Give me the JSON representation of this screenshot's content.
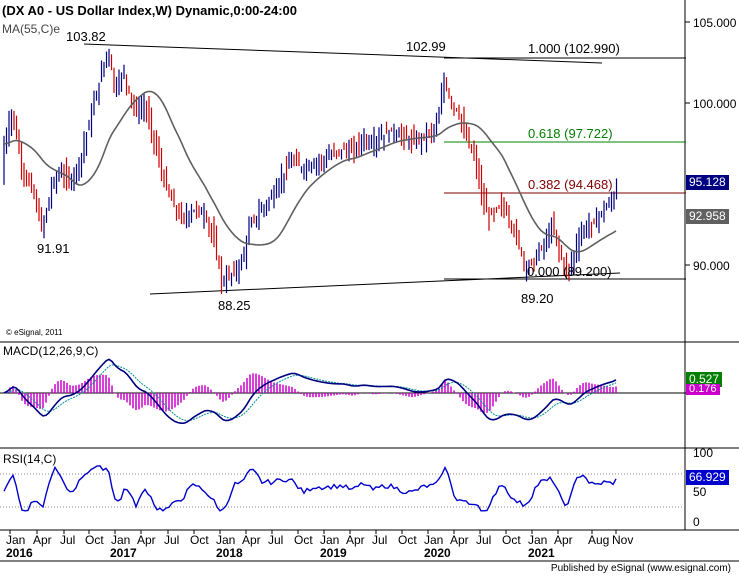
{
  "header": {
    "title": "(DX A0 - US Dollar Index,W) Dynamic,0:00-24:00",
    "ma_label": "MA(55,C)e",
    "credit": "© eSignal, 2011",
    "footer": "Published by eSignal (www.esignal.com)"
  },
  "price_axis": {
    "ticks": [
      "105.000",
      "100.000",
      "90.000"
    ],
    "current_price": "95.128",
    "ma_value": "92.958"
  },
  "annotations": {
    "high_2016": "103.82",
    "low_2016": "91.91",
    "high_2020": "102.99",
    "low_2018": "88.25",
    "low_2021": "89.20",
    "fib_100": "1.000 (102.990)",
    "fib_618": "0.618 (97.722)",
    "fib_382": "0.382 (94.468)",
    "fib_000": "0.000 (89.200)"
  },
  "macd": {
    "label": "MACD(12,26,9,C)",
    "value_1": "0.527",
    "value_2": "0.176"
  },
  "rsi": {
    "label": "RSI(14,C)",
    "ticks": [
      "100",
      "50",
      "0"
    ],
    "value": "66.929"
  },
  "time_axis": {
    "months": [
      "Jan",
      "Apr",
      "Jul",
      "Oct",
      "Jan",
      "Apr",
      "Jul",
      "Oct",
      "Jan",
      "Apr",
      "Jul",
      "Oct",
      "Jan",
      "Apr",
      "Jul",
      "Oct",
      "Jan",
      "Apr",
      "Jul",
      "Oct",
      "Jan",
      "Apr",
      "Aug",
      "Nov"
    ],
    "years": [
      "2016",
      "2017",
      "2018",
      "2019",
      "2020",
      "2021"
    ]
  },
  "colors": {
    "up_bar": "#000080",
    "down_bar": "#cc0000",
    "ma_line": "#606060",
    "fib_100": "#000000",
    "fib_618": "#008000",
    "fib_382": "#800000",
    "macd_line": "#000080",
    "signal_line": "#009090",
    "histogram": "#cc00cc",
    "rsi_line": "#0000cc",
    "current_price_bg": "#000080",
    "ma_bg": "#606060",
    "macd_value_bg": "#008000",
    "macd_value2_bg": "#cc00cc",
    "rsi_value_bg": "#0000cc"
  }
}
